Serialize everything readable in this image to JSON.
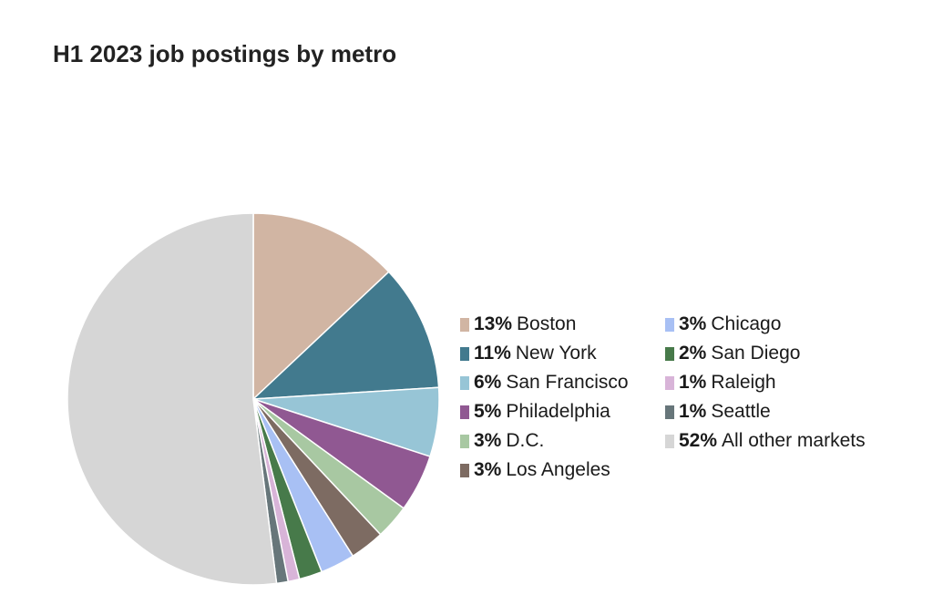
{
  "chart_data": {
    "type": "pie",
    "title": "H1 2023 job postings by metro",
    "slices": [
      {
        "label": "Boston",
        "pct_label": "13%",
        "value": 13,
        "color": "#d1b5a3"
      },
      {
        "label": "New York",
        "pct_label": "11%",
        "value": 11,
        "color": "#427a8e"
      },
      {
        "label": "San Francisco",
        "pct_label": "6%",
        "value": 6,
        "color": "#97c5d6"
      },
      {
        "label": "Philadelphia",
        "pct_label": "5%",
        "value": 5,
        "color": "#905892"
      },
      {
        "label": "D.C.",
        "pct_label": "3%",
        "value": 3,
        "color": "#a8c8a2"
      },
      {
        "label": "Los Angeles",
        "pct_label": "3%",
        "value": 3,
        "color": "#7d6b62"
      },
      {
        "label": "Chicago",
        "pct_label": "3%",
        "value": 3,
        "color": "#a8c0f4"
      },
      {
        "label": "San Diego",
        "pct_label": "2%",
        "value": 2,
        "color": "#477a4a"
      },
      {
        "label": "Raleigh",
        "pct_label": "1%",
        "value": 1,
        "color": "#d8b4d8"
      },
      {
        "label": "Seattle",
        "pct_label": "1%",
        "value": 1,
        "color": "#67767a"
      },
      {
        "label": "All other markets",
        "pct_label": "52%",
        "value": 52,
        "color": "#d6d6d6"
      }
    ],
    "legend_position": "right"
  }
}
